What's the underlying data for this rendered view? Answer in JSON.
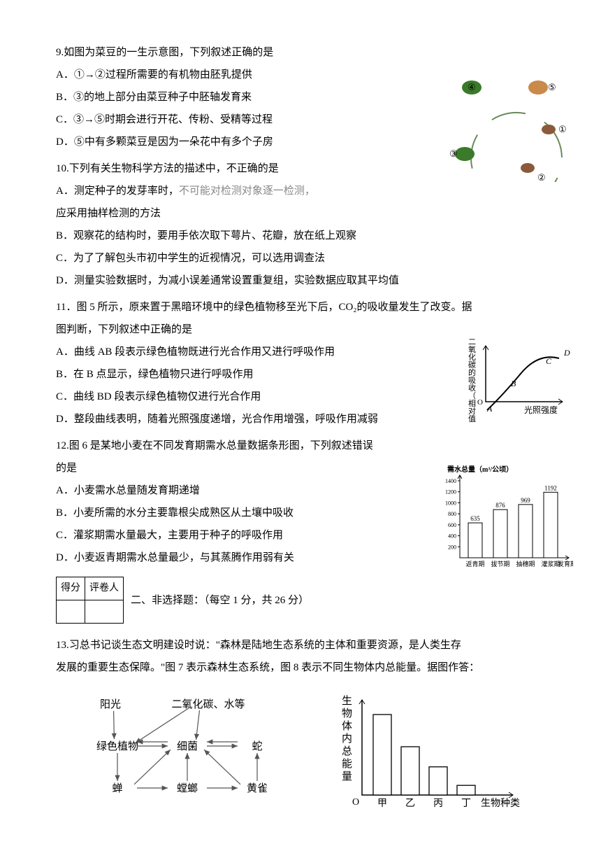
{
  "q9": {
    "stem": "9.如图为菜豆的一生示意图，下列叙述正确的是",
    "A": "A．①→②过程所需要的有机物由胚乳提供",
    "B": "B．③的地上部分由菜豆种子中胚轴发育来",
    "C": "C．③→⑤时期会进行开花、传粉、受精等过程",
    "D": "D．⑤中有多颗菜豆是因为一朵花中有多个子房"
  },
  "q10": {
    "stem": "10.下列有关生物科学方法的描述中，不正确的是",
    "A1": "A．测定种子的发芽率时，",
    "A1_gray": "不可能对检测对象逐一检测，",
    "A2": "应采用抽样检测的方法",
    "B": "B．观察花的结构时，要用手依次取下萼片、花瓣，放在纸上观察",
    "C": "C．为了了解包头市初中学生的近视情况，可以选用调查法",
    "D": "D．测量实验数据时，为减小误差通常设置重复组，实验数据应取其平均值"
  },
  "q11": {
    "stem1": "11．图 5 所示，原来置于黑暗环境中的绿色植物移至光下后，CO₂的吸收量发生了改变。据",
    "stem2": "图判断，下列叙述中正确的是",
    "A": "A．曲线 AB 段表示绿色植物既进行光合作用又进行呼吸作用",
    "B": "B．在 B 点显示，绿色植物只进行呼吸作用",
    "C": "C．曲线 BD 段表示绿色植物仅进行光合作用",
    "D": "D．整段曲线表明，随着光照强度递增，光合作用增强，呼吸作用减弱"
  },
  "q12": {
    "stem1": "12.图 6 是某地小麦在不同发育期需水总量数据条形图，下列叙述错误",
    "stem2": "的是",
    "A": "A．小麦需水总量随发育期递增",
    "B": "B．小麦所需的水分主要靠根尖成熟区从土壤中吸收",
    "C": "C．灌浆期需水量最大，主要用于种子的呼吸作用",
    "D": "D．小麦返青期需水总量最少，与其蒸腾作用弱有关"
  },
  "section2": {
    "score_label": "得分",
    "grader_label": "评卷人",
    "title": "二、非选择题：（每空 1 分，共 26 分）"
  },
  "q13": {
    "line1": "13.习总书记谈生态文明建设时说：\"森林是陆地生态系统的主体和重要资源，是人类生存",
    "line2": "发展的重要生态保障。\"图 7 表示森林生态系统，图 8 表示不同生物体内总能量。据图作答："
  },
  "fig_cycle": {
    "labels": [
      "①",
      "②",
      "③",
      "④",
      "⑤"
    ],
    "colors": {
      "leaf": "#3a7a2a",
      "bean": "#c98a4a",
      "seed": "#8a5a3a",
      "arrow": "#6a8a5a"
    }
  },
  "fig_curve": {
    "ylabel": "二氧化碳的吸收",
    "ylabel2": "（相对值）",
    "xlabel": "光照强度",
    "points": [
      "A",
      "B",
      "C",
      "D"
    ],
    "origin": "O",
    "stroke": "#000000",
    "curve_width": 2
  },
  "fig_bar": {
    "title": "需水总量（m³/公顷）",
    "ymax": 1400,
    "yticks": [
      200,
      400,
      600,
      800,
      1000,
      1200,
      1400
    ],
    "categories": [
      "返青期",
      "拔节期",
      "抽穗期",
      "灌浆期"
    ],
    "xlabel_end": "发育期",
    "values": [
      635,
      876,
      969,
      1192
    ],
    "bar_fill": "#ffffff",
    "bar_stroke": "#000000",
    "font_size": 10
  },
  "fig_ecosystem": {
    "nodes": {
      "sun": "阳光",
      "abiotic": "二氧化碳、水等",
      "plant": "绿色植物",
      "bacteria": "细菌",
      "snake": "蛇",
      "cicada": "蝉",
      "mantis": "螳螂",
      "oriole": "黄雀"
    },
    "stroke": "#555"
  },
  "fig_energy": {
    "ylabel": "生物体内总能量",
    "categories": [
      "甲",
      "乙",
      "丙",
      "丁"
    ],
    "xlabel_end": "生物种类",
    "values": [
      100,
      60,
      35,
      12
    ],
    "origin": "O",
    "bar_fill": "#ffffff",
    "bar_stroke": "#000000"
  }
}
